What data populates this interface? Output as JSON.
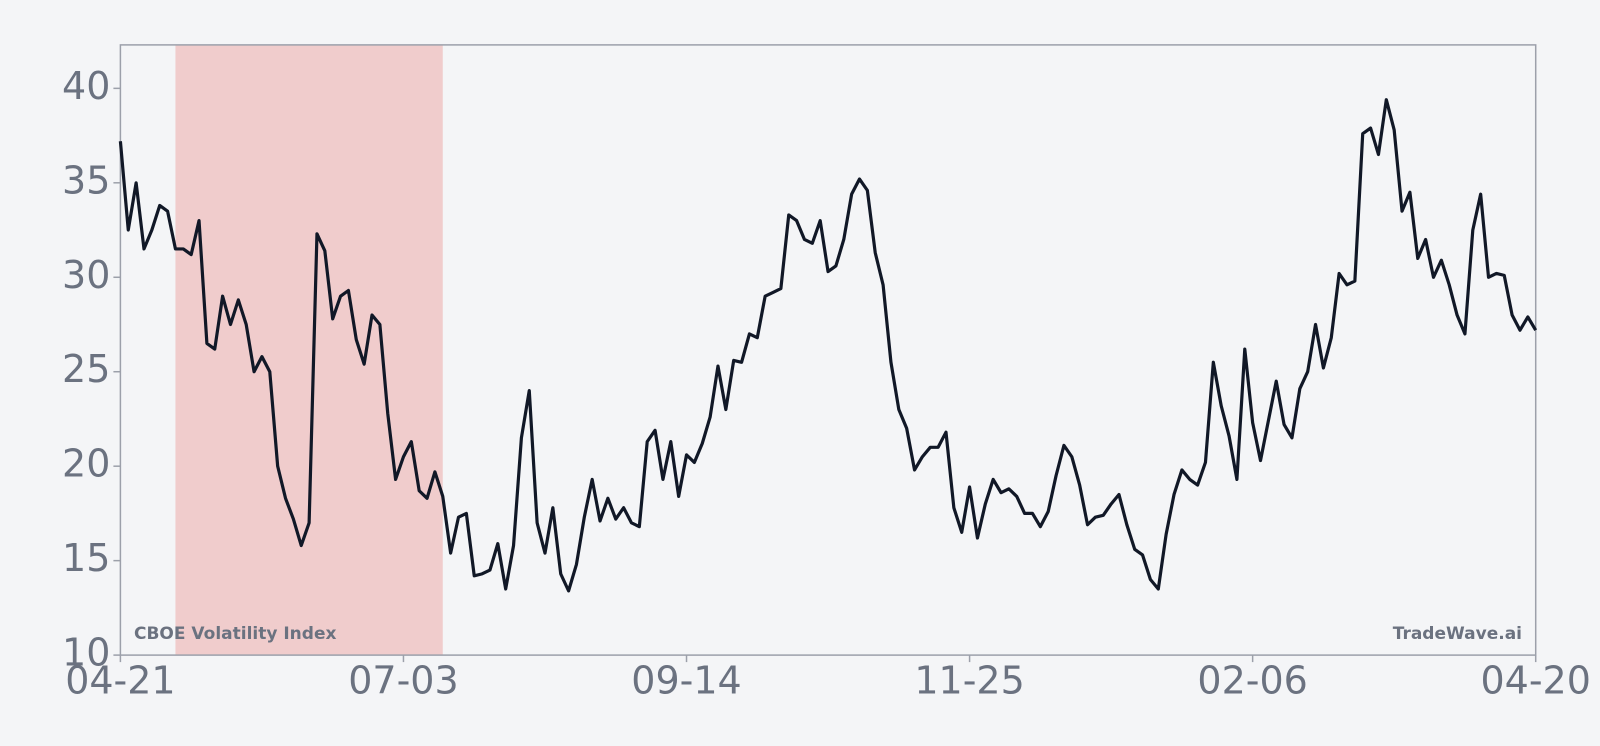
{
  "chart_data": {
    "type": "line",
    "annotations": [
      "CBOE Volatility Index",
      "TradeWave.ai"
    ],
    "categories": [
      "04-21",
      null,
      null,
      null,
      null,
      null,
      null,
      null,
      null,
      null,
      null,
      null,
      null,
      null,
      null,
      null,
      null,
      null,
      null,
      null,
      null,
      null,
      null,
      null,
      null,
      null,
      null,
      null,
      null,
      null,
      null,
      null,
      null,
      null,
      null,
      null,
      "07-03",
      null,
      null,
      null,
      null,
      null,
      null,
      null,
      null,
      null,
      null,
      null,
      null,
      null,
      null,
      null,
      null,
      null,
      null,
      null,
      null,
      null,
      null,
      null,
      null,
      null,
      null,
      null,
      null,
      null,
      null,
      null,
      null,
      null,
      null,
      null,
      "09-14",
      null,
      null,
      null,
      null,
      null,
      null,
      null,
      null,
      null,
      null,
      null,
      null,
      null,
      null,
      null,
      null,
      null,
      null,
      null,
      null,
      null,
      null,
      null,
      null,
      null,
      null,
      null,
      null,
      null,
      null,
      null,
      null,
      null,
      null,
      null,
      "11-25",
      null,
      null,
      null,
      null,
      null,
      null,
      null,
      null,
      null,
      null,
      null,
      null,
      null,
      null,
      null,
      null,
      null,
      null,
      null,
      null,
      null,
      null,
      null,
      null,
      null,
      null,
      null,
      null,
      null,
      null,
      null,
      null,
      null,
      null,
      null,
      "02-06",
      null,
      null,
      null,
      null,
      null,
      null,
      null,
      null,
      null,
      null,
      null,
      null,
      null,
      null,
      null,
      null,
      null,
      null,
      null,
      null,
      null,
      null,
      null,
      null,
      null,
      null,
      null,
      null,
      null,
      null,
      null,
      null,
      null,
      null,
      null,
      "04-20"
    ],
    "values": [
      37.2,
      32.5,
      35,
      31.5,
      32.5,
      33.8,
      33.5,
      31.5,
      31.5,
      31.2,
      33,
      26.5,
      26.2,
      29,
      27.5,
      28.8,
      27.5,
      25,
      25.8,
      25,
      20,
      18.3,
      17.2,
      15.8,
      17,
      32.3,
      31.4,
      27.8,
      29,
      29.3,
      26.7,
      25.4,
      28,
      27.5,
      22.8,
      19.3,
      20.5,
      21.3,
      18.7,
      18.3,
      19.7,
      18.4,
      15.4,
      17.3,
      17.5,
      14.2,
      14.3,
      14.5,
      15.9,
      13.5,
      15.8,
      21.5,
      24,
      17,
      15.4,
      17.8,
      14.3,
      13.4,
      14.8,
      17.3,
      19.3,
      17.1,
      18.3,
      17.2,
      17.8,
      17,
      16.8,
      21.3,
      21.9,
      19.3,
      21.3,
      18.4,
      20.6,
      20.2,
      21.2,
      22.6,
      25.3,
      23,
      25.6,
      25.5,
      27,
      26.8,
      29,
      29.2,
      29.4,
      33.3,
      33,
      32,
      31.8,
      33,
      30.3,
      30.6,
      32,
      34.4,
      35.2,
      34.6,
      31.3,
      29.6,
      25.5,
      23,
      22,
      19.8,
      20.5,
      21,
      21,
      21.8,
      17.8,
      16.5,
      18.9,
      16.2,
      18,
      19.3,
      18.6,
      18.8,
      18.4,
      17.5,
      17.5,
      16.8,
      17.6,
      19.5,
      21.1,
      20.5,
      19,
      16.9,
      17.3,
      17.4,
      18,
      18.5,
      16.9,
      15.6,
      15.3,
      14,
      13.5,
      16.4,
      18.5,
      19.8,
      19.3,
      19,
      20.2,
      25.5,
      23.2,
      21.6,
      19.3,
      26.2,
      22.3,
      20.3,
      22.4,
      24.5,
      22.2,
      21.5,
      24.1,
      25,
      27.5,
      25.2,
      26.8,
      30.2,
      29.6,
      29.8,
      37.6,
      37.9,
      36.5,
      39.4,
      37.8,
      33.5,
      34.5,
      31,
      32,
      30,
      30.9,
      29.6,
      28,
      27,
      32.5,
      34.4,
      30,
      30.2,
      30.1,
      28,
      27.2,
      27.9,
      27.2
    ],
    "color": "#111827",
    "highlight": {
      "start": 7,
      "end": 41,
      "color": "#f0cccc"
    },
    "ylim": [
      10,
      42.3
    ],
    "yticks": [
      10,
      15,
      20,
      25,
      30,
      35,
      40
    ],
    "grid": false
  }
}
